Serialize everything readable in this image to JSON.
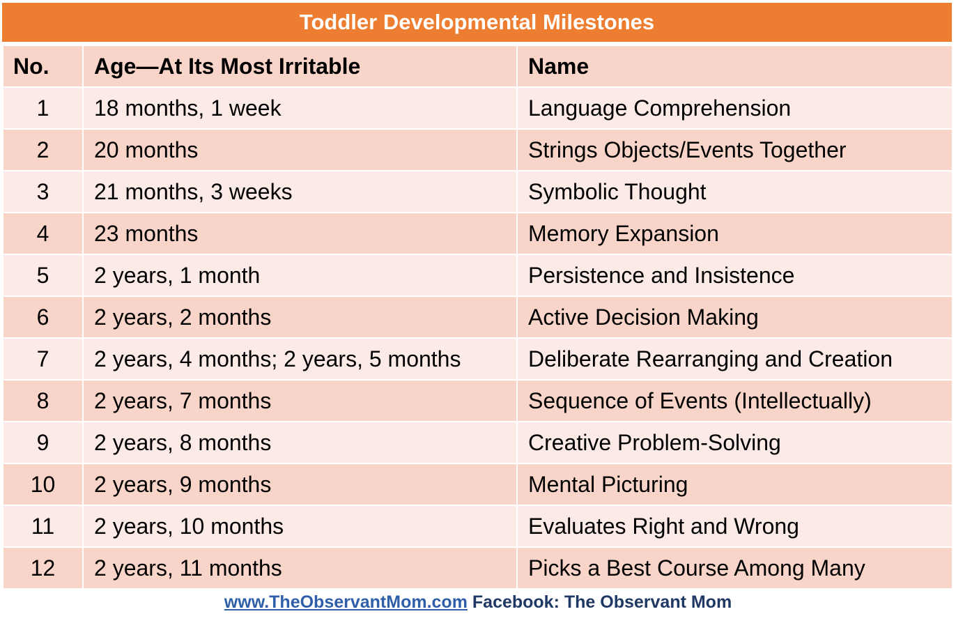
{
  "title": "Toddler Developmental Milestones",
  "colors": {
    "title_bg": "#ED7D31",
    "header_bg": "#F8D5C8",
    "row_light": "#FBEAE5",
    "row_dark": "#F8D5C8",
    "footer_text": "#1F3864",
    "link": "#2E5FA8"
  },
  "table": {
    "headers": [
      "No.",
      "Age—At Its Most Irritable",
      "Name"
    ],
    "rows": [
      {
        "no": "1",
        "age": "18 months, 1 week",
        "name": "Language Comprehension"
      },
      {
        "no": "2",
        "age": "20 months",
        "name": "Strings Objects/Events Together"
      },
      {
        "no": "3",
        "age": "21 months, 3 weeks",
        "name": "Symbolic Thought"
      },
      {
        "no": "4",
        "age": "23 months",
        "name": "Memory Expansion"
      },
      {
        "no": "5",
        "age": "2 years, 1 month",
        "name": "Persistence and Insistence"
      },
      {
        "no": "6",
        "age": "2 years, 2 months",
        "name": "Active Decision Making"
      },
      {
        "no": "7",
        "age": "2 years, 4 months; 2 years, 5 months",
        "name": "Deliberate Rearranging and Creation"
      },
      {
        "no": "8",
        "age": "2 years, 7 months",
        "name": "Sequence of Events (Intellectually)"
      },
      {
        "no": "9",
        "age": "2 years, 8 months",
        "name": "Creative Problem-Solving"
      },
      {
        "no": "10",
        "age": "2 years, 9 months",
        "name": "Mental Picturing"
      },
      {
        "no": "11",
        "age": "2 years, 10 months",
        "name": "Evaluates Right and Wrong"
      },
      {
        "no": "12",
        "age": "2 years, 11 months",
        "name": "Picks a Best Course Among Many"
      }
    ]
  },
  "footer": {
    "link_text": "www.TheObservantMom.com",
    "facebook_text": "Facebook: The Observant Mom"
  }
}
